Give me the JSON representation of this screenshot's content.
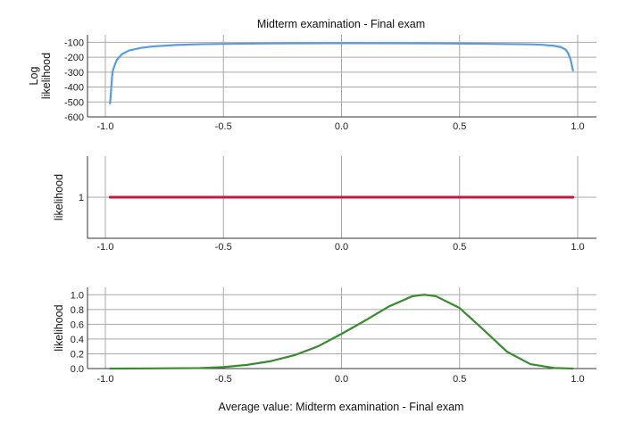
{
  "figure": {
    "title": "Midterm examination - Final exam",
    "xlabel": "Average value: Midterm examination - Final exam"
  },
  "chart_data": [
    {
      "type": "line",
      "title": "Midterm examination - Final exam",
      "ylabel_lines": [
        "Log",
        "likelihood"
      ],
      "xlim": [
        -1.0,
        1.0
      ],
      "ylim": [
        -600,
        -50
      ],
      "xticks": [
        "-1.0",
        "-0.5",
        "0.0",
        "0.5",
        "1.0"
      ],
      "yticks": [
        -100,
        -200,
        -300,
        -400,
        -500,
        -600
      ],
      "ytick_labels": [
        "-100",
        "-200",
        "-300",
        "-400",
        "-500",
        "-600"
      ],
      "grid": true,
      "color": "#5b9be0",
      "series": [
        {
          "x": [
            -0.98,
            -0.97,
            -0.96,
            -0.95,
            -0.93,
            -0.9,
            -0.85,
            -0.8,
            -0.7,
            -0.6,
            -0.5,
            -0.3,
            0.0,
            0.3,
            0.5,
            0.6,
            0.7,
            0.8,
            0.85,
            0.9,
            0.93,
            0.95,
            0.96,
            0.97,
            0.98
          ],
          "y": [
            -510,
            -300,
            -250,
            -215,
            -180,
            -155,
            -138,
            -128,
            -118,
            -113,
            -111,
            -108,
            -106,
            -107,
            -109,
            -110,
            -112,
            -114,
            -117,
            -124,
            -133,
            -150,
            -175,
            -215,
            -290
          ]
        }
      ]
    },
    {
      "type": "line",
      "ylabel_lines": [
        "likelihood"
      ],
      "xlim": [
        -1.0,
        1.0
      ],
      "ylim": [
        0.5,
        1.5
      ],
      "xticks": [
        "-1.0",
        "-0.5",
        "0.0",
        "0.5",
        "1.0"
      ],
      "yticks": [
        1
      ],
      "ytick_labels": [
        "1"
      ],
      "grid": true,
      "color": "#c8193c",
      "series": [
        {
          "x": [
            -0.98,
            0.98
          ],
          "y": [
            1,
            1
          ]
        }
      ]
    },
    {
      "type": "line",
      "ylabel_lines": [
        "likelihood"
      ],
      "xlim": [
        -1.0,
        1.0
      ],
      "ylim": [
        0,
        1.1
      ],
      "xticks": [
        "-1.0",
        "-0.5",
        "0.0",
        "0.5",
        "1.0"
      ],
      "yticks": [
        0,
        0.2,
        0.4,
        0.6,
        0.8,
        1.0
      ],
      "ytick_labels": [
        "0.0",
        "0.2",
        "0.4",
        "0.6",
        "0.8",
        "1.0"
      ],
      "grid": true,
      "color": "#3a8a32",
      "series": [
        {
          "x": [
            -0.98,
            -0.8,
            -0.6,
            -0.5,
            -0.4,
            -0.3,
            -0.2,
            -0.1,
            0.0,
            0.1,
            0.2,
            0.3,
            0.35,
            0.4,
            0.5,
            0.6,
            0.7,
            0.8,
            0.9,
            0.98
          ],
          "y": [
            0.0,
            0.002,
            0.007,
            0.02,
            0.05,
            0.1,
            0.18,
            0.3,
            0.47,
            0.65,
            0.84,
            0.98,
            1.0,
            0.98,
            0.82,
            0.53,
            0.23,
            0.06,
            0.008,
            0.0
          ]
        }
      ]
    }
  ]
}
